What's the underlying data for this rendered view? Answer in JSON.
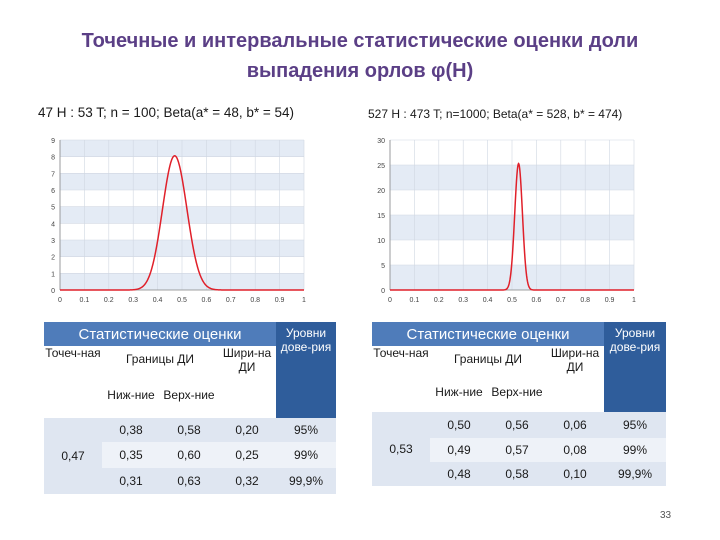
{
  "title": {
    "line1": "Точечные и интервальные статистические оценки доли",
    "line2": "выпадения орлов φ(H)"
  },
  "left": {
    "subtitle": "47 H : 53 T; n = 100; Beta(a* = 48, b* = 54)",
    "table": {
      "header_main": "Статистические оценки",
      "header_levels": "Уровни дове-рия",
      "col_point": "Точеч-ная",
      "col_bounds": "Границы ДИ",
      "col_lower": "Ниж-ние",
      "col_upper": "Верх-ние",
      "col_width": "Шири-на ДИ",
      "point_value": "0,47",
      "rows": [
        {
          "lower": "0,38",
          "upper": "0,58",
          "width": "0,20",
          "level": "95%"
        },
        {
          "lower": "0,35",
          "upper": "0,60",
          "width": "0,25",
          "level": "99%"
        },
        {
          "lower": "0,31",
          "upper": "0,63",
          "width": "0,32",
          "level": "99,9%"
        }
      ]
    }
  },
  "right": {
    "subtitle": "527 H : 473 T; n=1000; Beta(a* = 528, b* = 474)",
    "table": {
      "header_main": "Статистические оценки",
      "header_levels": "Уровни дове-рия",
      "col_point": "Точеч-ная",
      "col_bounds": "Границы ДИ",
      "col_lower": "Ниж-ние",
      "col_upper": "Верх-ние",
      "col_width": "Шири-на ДИ",
      "point_value": "0,53",
      "rows": [
        {
          "lower": "0,50",
          "upper": "0,56",
          "width": "0,06",
          "level": "95%"
        },
        {
          "lower": "0,49",
          "upper": "0,57",
          "width": "0,08",
          "level": "99%"
        },
        {
          "lower": "0,48",
          "upper": "0,58",
          "width": "0,10",
          "level": "99,9%"
        }
      ]
    }
  },
  "page_number": "33",
  "colors": {
    "title": "#5b3f86",
    "curve": "#e0202a",
    "header": "#4f7cba",
    "band": "#e4ebf5"
  },
  "chart_data": [
    {
      "type": "line",
      "series": [
        {
          "beta_a": 48,
          "beta_b": 54
        }
      ],
      "xlim": [
        0,
        1
      ],
      "ylim": [
        0,
        9
      ],
      "x_ticks": [
        "0",
        "0.1",
        "0.2",
        "0.3",
        "0.4",
        "0.5",
        "0.6",
        "0.7",
        "0.8",
        "0.9",
        "1"
      ],
      "y_ticks": [
        "0",
        "1",
        "2",
        "3",
        "4",
        "5",
        "6",
        "7",
        "8",
        "9"
      ],
      "grid": true
    },
    {
      "type": "line",
      "series": [
        {
          "beta_a": 528,
          "beta_b": 474
        }
      ],
      "xlim": [
        0,
        1
      ],
      "ylim": [
        0,
        30
      ],
      "x_ticks": [
        "0",
        "0.1",
        "0.2",
        "0.3",
        "0.4",
        "0.5",
        "0.6",
        "0.7",
        "0.8",
        "0.9",
        "1"
      ],
      "y_ticks": [
        "0",
        "5",
        "10",
        "15",
        "20",
        "25",
        "30"
      ],
      "grid": true
    }
  ]
}
